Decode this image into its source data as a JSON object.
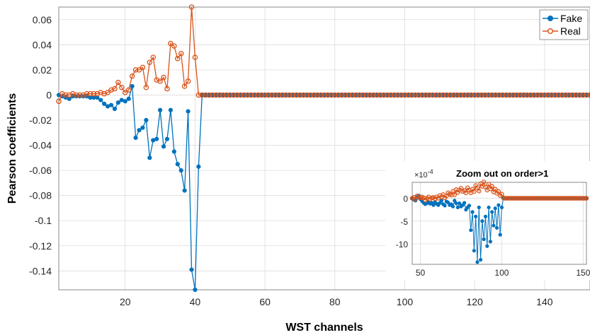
{
  "chart_data": [
    {
      "type": "line",
      "xlabel": "WST channels",
      "ylabel": "Pearson coefficients",
      "xlim": [
        1,
        153
      ],
      "ylim": [
        -0.155,
        0.07
      ],
      "xticks": [
        20,
        40,
        60,
        80,
        100,
        120,
        140
      ],
      "xtick_labels": [
        "20",
        "40",
        "60",
        "80",
        "100",
        "120",
        "140"
      ],
      "yticks": [
        0.06,
        0.04,
        0.02,
        0,
        -0.02,
        -0.04,
        -0.06,
        -0.08,
        -0.1,
        -0.12,
        -0.14
      ],
      "ytick_labels": [
        "0.06",
        "0.04",
        "0.02",
        "0",
        "-0.02",
        "-0.04",
        "-0.06",
        "-0.08",
        "-0.1",
        "-0.12",
        "-0.14"
      ],
      "grid": true,
      "legend": "top-right",
      "series": [
        {
          "name": "Fake",
          "color": "#0072BD",
          "marker": "filled-circle",
          "x": [
            1,
            2,
            3,
            4,
            5,
            6,
            7,
            8,
            9,
            10,
            11,
            12,
            13,
            14,
            15,
            16,
            17,
            18,
            19,
            20,
            21,
            22,
            23,
            24,
            25,
            26,
            27,
            28,
            29,
            30,
            31,
            32,
            33,
            34,
            35,
            36,
            37,
            38,
            39,
            40,
            41
          ],
          "values": [
            0,
            -0.001,
            -0.002,
            -0.003,
            -0.001,
            -0.001,
            -0.001,
            -0.001,
            -0.001,
            -0.002,
            -0.002,
            -0.002,
            -0.004,
            -0.007,
            -0.009,
            -0.008,
            -0.011,
            -0.006,
            -0.004,
            -0.005,
            -0.003,
            0.007,
            -0.034,
            -0.028,
            -0.026,
            -0.02,
            -0.05,
            -0.036,
            -0.035,
            -0.012,
            -0.041,
            -0.035,
            -0.012,
            -0.045,
            -0.055,
            -0.06,
            -0.076,
            -0.013,
            -0.139,
            -0.155,
            -0.057
          ]
        },
        {
          "name": "Real",
          "color": "#D95319",
          "marker": "open-circle",
          "x": [
            1,
            2,
            3,
            4,
            5,
            6,
            7,
            8,
            9,
            10,
            11,
            12,
            13,
            14,
            15,
            16,
            17,
            18,
            19,
            20,
            21,
            22,
            23,
            24,
            25,
            26,
            27,
            28,
            29,
            30,
            31,
            32,
            33,
            34,
            35,
            36,
            37,
            38,
            39,
            40,
            41
          ],
          "values": [
            -0.005,
            0.001,
            0,
            0,
            0.001,
            0,
            0,
            0,
            0.001,
            0.001,
            0.001,
            0.001,
            0.002,
            0.001,
            0.002,
            0.004,
            0.005,
            0.01,
            0.006,
            0.002,
            0.004,
            0.015,
            0.02,
            0.02,
            0.022,
            0.006,
            0.026,
            0.03,
            0.012,
            0.011,
            0.014,
            0.005,
            0.041,
            0.039,
            0.029,
            0.033,
            0.007,
            0.011,
            0.07,
            0.03,
            0
          ]
        }
      ],
      "tail": {
        "x_start": 42,
        "x_end": 153,
        "value": 0,
        "note_series": [
          "Fake",
          "Real"
        ]
      }
    },
    {
      "type": "line",
      "title": "Zoom out on order>1",
      "y_exponent_label": "×10",
      "y_exponent_power": "-4",
      "xlim": [
        45,
        152
      ],
      "ylim": [
        -14.5,
        3.5
      ],
      "xticks": [
        50,
        100,
        150
      ],
      "xtick_labels": [
        "50",
        "100",
        "150"
      ],
      "yticks": [
        0,
        -5,
        -10
      ],
      "ytick_labels": [
        "0",
        "-5",
        "-10"
      ],
      "grid": true,
      "series": [
        {
          "name": "Fake",
          "color": "#0072BD",
          "x": [
            45,
            46,
            47,
            48,
            49,
            50,
            51,
            52,
            53,
            54,
            55,
            56,
            57,
            58,
            59,
            60,
            61,
            62,
            63,
            64,
            65,
            66,
            67,
            68,
            69,
            70,
            71,
            72,
            73,
            74,
            75,
            76,
            77,
            78,
            79,
            80,
            81,
            82,
            83,
            84,
            85,
            86,
            87,
            88,
            89,
            90,
            91,
            92,
            93,
            94,
            95,
            96,
            97,
            98,
            99,
            100,
            101
          ],
          "values": [
            0,
            -0.3,
            -0.5,
            0.3,
            0.6,
            -0.2,
            -0.6,
            -1,
            -1.3,
            -1.1,
            -0.8,
            -1.2,
            -1,
            -1.5,
            -0.8,
            -1.2,
            -1.5,
            -1,
            -0.5,
            -1.3,
            -1.6,
            -0.7,
            -0.9,
            -1.5,
            -1.3,
            -1.8,
            -0.5,
            -1.1,
            -2,
            -1.1,
            -1.8,
            -1.5,
            -1,
            -2.5,
            -2,
            -1.6,
            -7,
            -3,
            -11.5,
            -4,
            -14,
            -2,
            -13.5,
            -5,
            -9,
            -4,
            -10.5,
            -2,
            -9.5,
            -3,
            -6,
            -2.2,
            -6.5,
            -1.5,
            -8,
            -2,
            0
          ]
        },
        {
          "name": "Real",
          "color": "#D95319",
          "x": [
            45,
            46,
            47,
            48,
            49,
            50,
            51,
            52,
            53,
            54,
            55,
            56,
            57,
            58,
            59,
            60,
            61,
            62,
            63,
            64,
            65,
            66,
            67,
            68,
            69,
            70,
            71,
            72,
            73,
            74,
            75,
            76,
            77,
            78,
            79,
            80,
            81,
            82,
            83,
            84,
            85,
            86,
            87,
            88,
            89,
            90,
            91,
            92,
            93,
            94,
            95,
            96,
            97,
            98,
            99,
            100,
            101
          ],
          "values": [
            0,
            0.2,
            -0.2,
            0.5,
            0.2,
            0.1,
            0.3,
            0.1,
            -0.4,
            0,
            0.3,
            -0.2,
            0.1,
            0.2,
            -0.1,
            0.3,
            0,
            0.6,
            0.3,
            0.8,
            0.1,
            0.5,
            1.2,
            0.9,
            0.7,
            1.5,
            0.8,
            1.9,
            1.3,
            1.8,
            2.2,
            1.5,
            1.7,
            1.2,
            2.3,
            1.8,
            1.2,
            2,
            1.5,
            2.8,
            2.3,
            1.6,
            3.2,
            2.6,
            3.6,
            2.5,
            1.8,
            3.1,
            2.1,
            2.6,
            1.4,
            2,
            1.1,
            1.5,
            0.6,
            0.9,
            0.1
          ]
        }
      ],
      "tail": {
        "x_start": 102,
        "x_end": 152,
        "value": 0
      }
    }
  ]
}
